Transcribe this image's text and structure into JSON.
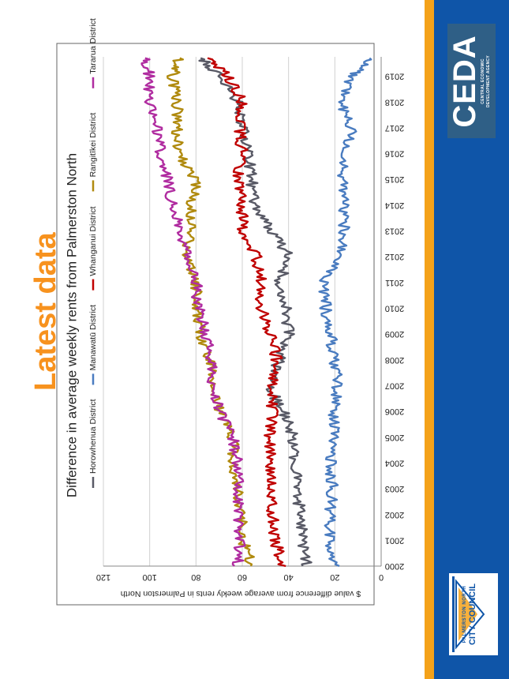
{
  "slide": {
    "title": "Latest data"
  },
  "logos": {
    "ceda_word": "CEDA",
    "ceda_sub_line1": "CENTRAL ECONOMIC",
    "ceda_sub_line2": "DEVELOPMENT AGENCY",
    "pncc_sub": "PALMERSTON NORTH",
    "pncc_word": "CITY COUNCIL"
  },
  "colors": {
    "title": "#f7921e",
    "orange_bar": "#f4a21a",
    "blue_panel": "#0f55a8",
    "ceda_box": "#2f5f86"
  },
  "chart_data": {
    "type": "line",
    "title": "Difference in average weekly rents from Palmerston North",
    "ylabel": "$ value difference from average weekly rents in Palmerston North",
    "xlabel": "",
    "xlim": [
      2000,
      2019.75
    ],
    "ylim": [
      0,
      120
    ],
    "yticks": [
      0,
      20,
      40,
      60,
      80,
      100,
      120
    ],
    "xticks": [
      2000,
      2001,
      2002,
      2003,
      2004,
      2005,
      2006,
      2007,
      2008,
      2009,
      2010,
      2011,
      2012,
      2013,
      2014,
      2015,
      2016,
      2017,
      2018,
      2019
    ],
    "grid": true,
    "legend_position": "top",
    "series": [
      {
        "name": "Horowhenua District",
        "color": "#595a66",
        "x": [
          2000,
          2001,
          2002,
          2003,
          2004,
          2005,
          2006,
          2007,
          2008,
          2009,
          2010,
          2011,
          2012,
          2013,
          2014,
          2015,
          2016,
          2017,
          2018,
          2019,
          2019.7
        ],
        "values": [
          32,
          34,
          35,
          36,
          37,
          38,
          42,
          49,
          44,
          40,
          41,
          44,
          40,
          47,
          55,
          56,
          57,
          60,
          62,
          70,
          78
        ]
      },
      {
        "name": "Manawatū District",
        "color": "#4a7cc0",
        "x": [
          2000,
          2001,
          2002,
          2003,
          2004,
          2005,
          2006,
          2007,
          2008,
          2009,
          2010,
          2011,
          2012,
          2013,
          2014,
          2015,
          2016,
          2017,
          2018,
          2019,
          2019.7
        ],
        "values": [
          20,
          22,
          22,
          21,
          22,
          21,
          20,
          19,
          20,
          22,
          24,
          25,
          18,
          16,
          16,
          17,
          15,
          13,
          18,
          13,
          5
        ]
      },
      {
        "name": "Whanganui District",
        "color": "#c00000",
        "x": [
          2000,
          2001,
          2002,
          2003,
          2004,
          2005,
          2006,
          2007,
          2008,
          2009,
          2010,
          2011,
          2012,
          2013,
          2014,
          2015,
          2016,
          2017,
          2018,
          2019,
          2019.7
        ],
        "values": [
          42,
          46,
          47,
          48,
          48,
          48,
          47,
          47,
          45,
          48,
          52,
          52,
          54,
          60,
          60,
          62,
          60,
          61,
          60,
          66,
          75
        ]
      },
      {
        "name": "Rangitīkei District",
        "color": "#b08a0e",
        "x": [
          2000,
          2001,
          2002,
          2003,
          2004,
          2005,
          2006,
          2007,
          2008,
          2009,
          2010,
          2011,
          2012,
          2013,
          2014,
          2015,
          2016,
          2017,
          2018,
          2019,
          2019.7
        ],
        "values": [
          56,
          60,
          60,
          62,
          64,
          64,
          70,
          73,
          74,
          78,
          80,
          80,
          84,
          82,
          82,
          80,
          88,
          88,
          88,
          90,
          87
        ]
      },
      {
        "name": "Tararua District",
        "color": "#b02ca0",
        "x": [
          2000,
          2001,
          2002,
          2003,
          2004,
          2005,
          2006,
          2007,
          2008,
          2009,
          2010,
          2011,
          2012,
          2013,
          2014,
          2015,
          2016,
          2017,
          2018,
          2019,
          2019.7
        ],
        "values": [
          62,
          61,
          62,
          61,
          62,
          64,
          70,
          73,
          73,
          76,
          79,
          80,
          84,
          87,
          90,
          92,
          95,
          97,
          100,
          100,
          102
        ]
      }
    ]
  }
}
